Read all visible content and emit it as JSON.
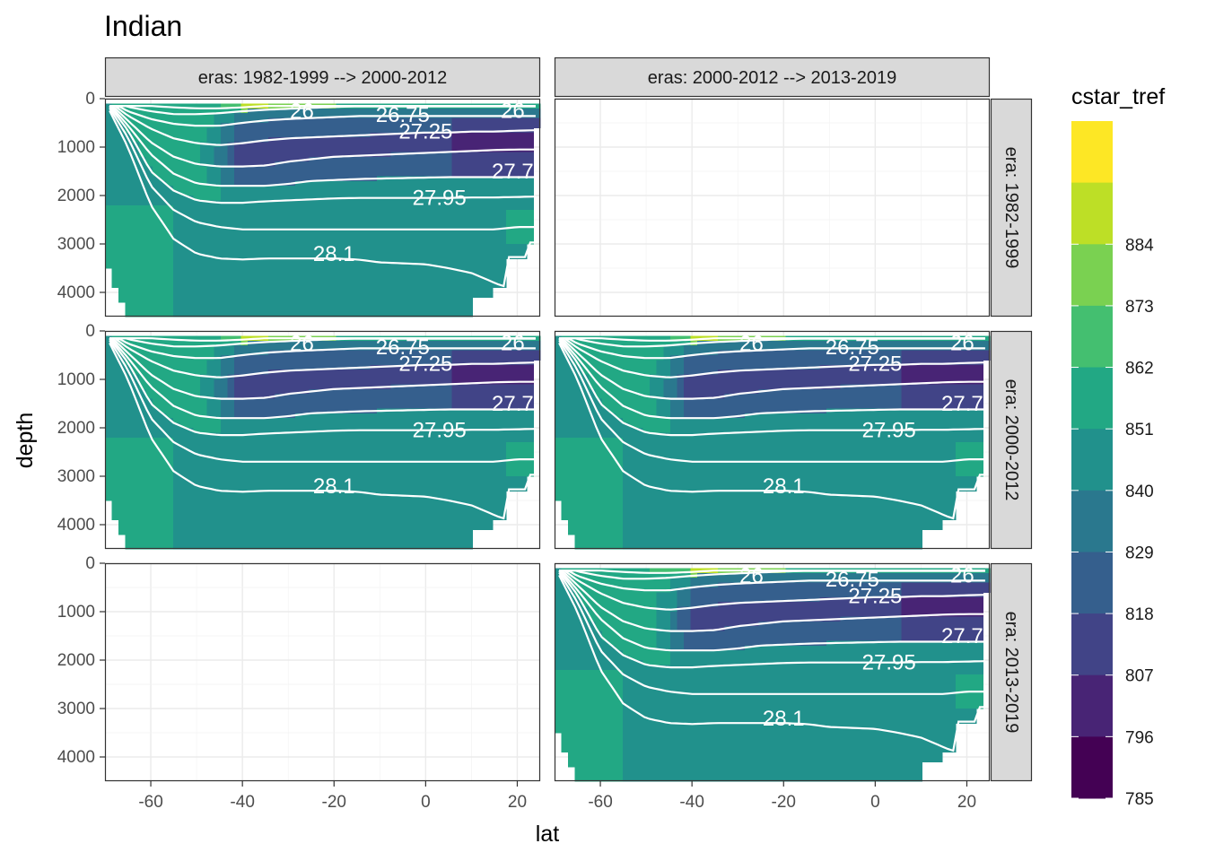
{
  "chart_data": {
    "type": "heatmap",
    "title": "Indian",
    "xlabel": "lat",
    "ylabel": "depth",
    "xlim": [
      -70,
      25
    ],
    "ylim": [
      0,
      4500
    ],
    "y_reversed": true,
    "x_ticks": [
      "-60",
      "-40",
      "-20",
      "0",
      "20"
    ],
    "x_tick_values": [
      -60,
      -40,
      -20,
      0,
      20
    ],
    "y_ticks": [
      "0",
      "1000",
      "2000",
      "3000",
      "4000"
    ],
    "y_tick_values": [
      0,
      1000,
      2000,
      3000,
      4000
    ],
    "columns": [
      "eras: 1982-1999 --> 2000-2012",
      "eras: 2000-2012 --> 2013-2019"
    ],
    "rows": [
      "era: 1982-1999",
      "era: 2000-2012",
      "era: 2013-2019"
    ],
    "legend": {
      "title": "cstar_tref",
      "placement": "right",
      "labels": [
        "884",
        "873",
        "862",
        "851",
        "840",
        "829",
        "818",
        "807",
        "796",
        "785"
      ],
      "label_values": [
        884,
        873,
        862,
        851,
        840,
        829,
        818,
        807,
        796,
        785
      ],
      "bins": [
        {
          "min": 895,
          "max": 906,
          "color": "#fde725"
        },
        {
          "min": 884,
          "max": 895,
          "color": "#bddf26"
        },
        {
          "min": 873,
          "max": 884,
          "color": "#7ad151"
        },
        {
          "min": 862,
          "max": 873,
          "color": "#44bf70"
        },
        {
          "min": 851,
          "max": 862,
          "color": "#22a884"
        },
        {
          "min": 840,
          "max": 851,
          "color": "#21918c"
        },
        {
          "min": 829,
          "max": 840,
          "color": "#2a788e"
        },
        {
          "min": 818,
          "max": 829,
          "color": "#355f8d"
        },
        {
          "min": 807,
          "max": 818,
          "color": "#414487"
        },
        {
          "min": 796,
          "max": 807,
          "color": "#482475"
        },
        {
          "min": 785,
          "max": 796,
          "color": "#440154"
        }
      ]
    },
    "contour_labels": [
      "26",
      "26.75",
      "27.25",
      "27.7",
      "27.95",
      "28.1",
      "26"
    ],
    "panels": [
      {
        "row": 0,
        "col": 0,
        "filled": true
      },
      {
        "row": 0,
        "col": 1,
        "filled": false
      },
      {
        "row": 1,
        "col": 0,
        "filled": true
      },
      {
        "row": 1,
        "col": 1,
        "filled": true
      },
      {
        "row": 2,
        "col": 0,
        "filled": false
      },
      {
        "row": 2,
        "col": 1,
        "filled": true
      }
    ]
  }
}
